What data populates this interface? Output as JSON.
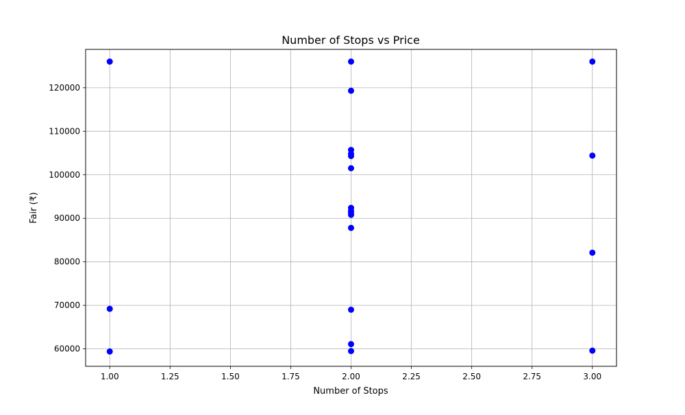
{
  "chart_data": {
    "type": "scatter",
    "title": "Number of Stops vs Price",
    "xlabel": "Number of Stops",
    "ylabel": "Fair (₹)",
    "xlim": [
      0.9,
      3.1
    ],
    "ylim": [
      56000,
      128800
    ],
    "x_ticks": [
      1.0,
      1.25,
      1.5,
      1.75,
      2.0,
      2.25,
      2.5,
      2.75,
      3.0
    ],
    "x_tick_labels": [
      "1.00",
      "1.25",
      "1.50",
      "1.75",
      "2.00",
      "2.25",
      "2.50",
      "2.75",
      "3.00"
    ],
    "y_ticks": [
      60000,
      70000,
      80000,
      90000,
      100000,
      110000,
      120000
    ],
    "y_tick_labels": [
      "60000",
      "70000",
      "80000",
      "90000",
      "100000",
      "110000",
      "120000"
    ],
    "grid": true,
    "marker_color": "#0000ff",
    "points": [
      {
        "x": 1,
        "y": 126000
      },
      {
        "x": 1,
        "y": 69200
      },
      {
        "x": 1,
        "y": 59400
      },
      {
        "x": 2,
        "y": 126000
      },
      {
        "x": 2,
        "y": 119300
      },
      {
        "x": 2,
        "y": 105700
      },
      {
        "x": 2,
        "y": 104800
      },
      {
        "x": 2,
        "y": 104300
      },
      {
        "x": 2,
        "y": 101500
      },
      {
        "x": 2,
        "y": 92400
      },
      {
        "x": 2,
        "y": 91700
      },
      {
        "x": 2,
        "y": 91300
      },
      {
        "x": 2,
        "y": 90800
      },
      {
        "x": 2,
        "y": 87800
      },
      {
        "x": 2,
        "y": 69000
      },
      {
        "x": 2,
        "y": 61100
      },
      {
        "x": 2,
        "y": 59500
      },
      {
        "x": 3,
        "y": 126000
      },
      {
        "x": 3,
        "y": 104400
      },
      {
        "x": 3,
        "y": 82100
      },
      {
        "x": 3,
        "y": 59600
      }
    ]
  }
}
